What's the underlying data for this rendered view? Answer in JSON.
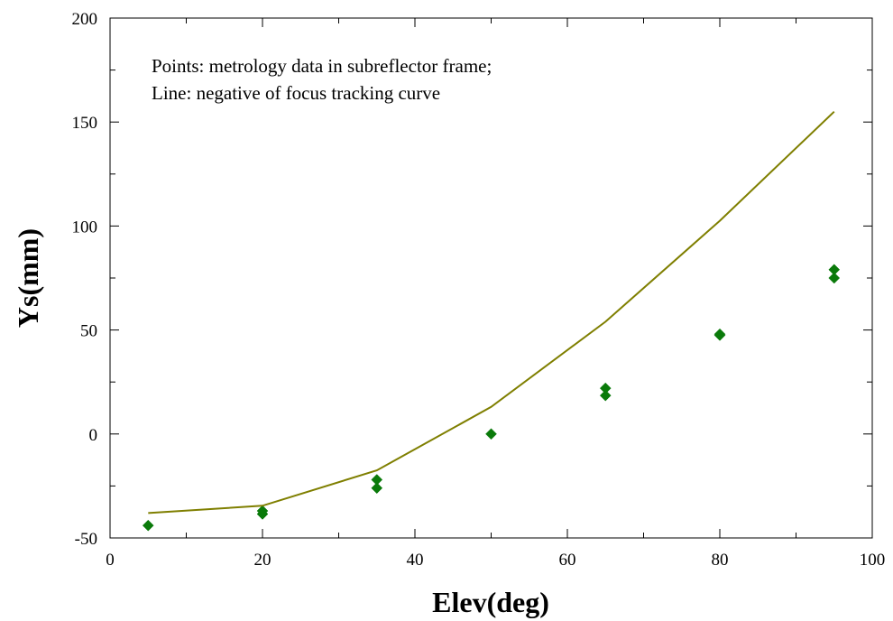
{
  "chart_data": {
    "type": "scatter",
    "xlabel": "Elev(deg)",
    "ylabel": "Ys(mm)",
    "xlim": [
      0,
      100
    ],
    "ylim": [
      -50,
      200
    ],
    "x_ticks": [
      0,
      20,
      40,
      60,
      80,
      100
    ],
    "x_tick_labels": [
      "0",
      "20",
      "40",
      "60",
      "80",
      "100"
    ],
    "y_ticks": [
      -50,
      0,
      50,
      100,
      150,
      200
    ],
    "y_tick_labels": [
      "-50",
      "0",
      "50",
      "100",
      "150",
      "200"
    ],
    "annotations": [
      "Points: metrology data in subreflector frame;",
      "Line: negative of focus tracking curve"
    ],
    "grid": false,
    "series": [
      {
        "kind": "points",
        "color": "#0a7a0a",
        "points": [
          [
            5,
            -44
          ],
          [
            20,
            -37
          ],
          [
            20,
            -38.5
          ],
          [
            35,
            -22
          ],
          [
            35,
            -26
          ],
          [
            50,
            0
          ],
          [
            65,
            22
          ],
          [
            65,
            18.5
          ],
          [
            80,
            48
          ],
          [
            80,
            47.5
          ],
          [
            95,
            79
          ],
          [
            95,
            75
          ]
        ]
      },
      {
        "kind": "line",
        "color": "#7f7f00",
        "points": [
          [
            5,
            -38
          ],
          [
            20,
            -34.5
          ],
          [
            35,
            -17.5
          ],
          [
            50,
            13
          ],
          [
            65,
            54
          ],
          [
            80,
            102.5
          ],
          [
            95,
            155
          ]
        ]
      }
    ]
  }
}
